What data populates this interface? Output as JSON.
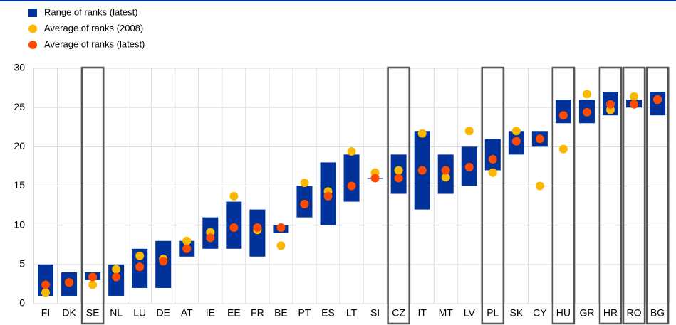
{
  "chart_data": {
    "type": "range-dot",
    "categories": [
      "FI",
      "DK",
      "SE",
      "NL",
      "LU",
      "DE",
      "AT",
      "IE",
      "EE",
      "FR",
      "BE",
      "PT",
      "ES",
      "LT",
      "SI",
      "CZ",
      "IT",
      "MT",
      "LV",
      "PL",
      "SK",
      "CY",
      "HU",
      "GR",
      "HR",
      "RO",
      "BG"
    ],
    "highlighted": [
      false,
      false,
      true,
      false,
      false,
      false,
      false,
      false,
      false,
      false,
      false,
      false,
      false,
      false,
      false,
      true,
      false,
      false,
      false,
      true,
      false,
      false,
      true,
      false,
      true,
      true,
      true
    ],
    "series": [
      {
        "name": "Range of ranks (latest)",
        "color": "#003299",
        "values": [
          [
            1,
            5
          ],
          [
            1,
            4
          ],
          [
            3,
            4
          ],
          [
            1,
            5
          ],
          [
            2,
            7
          ],
          [
            2,
            8
          ],
          [
            6,
            8
          ],
          [
            7,
            11
          ],
          [
            7,
            13
          ],
          [
            6,
            12
          ],
          [
            9,
            10
          ],
          [
            11,
            15
          ],
          [
            10,
            18
          ],
          [
            13,
            19
          ],
          [
            16,
            16
          ],
          [
            14,
            19
          ],
          [
            12,
            22
          ],
          [
            14,
            19
          ],
          [
            15,
            20
          ],
          [
            17,
            21
          ],
          [
            19,
            22
          ],
          [
            20,
            22
          ],
          [
            23,
            26
          ],
          [
            23,
            26
          ],
          [
            24,
            27
          ],
          [
            25,
            26
          ],
          [
            24,
            27
          ]
        ]
      },
      {
        "name": "Average of ranks (2008)",
        "color": "#fbb800",
        "values": [
          1.4,
          2.7,
          2.4,
          4.4,
          6.1,
          5.7,
          8.0,
          9.1,
          13.7,
          9.4,
          7.4,
          15.4,
          14.3,
          19.4,
          16.7,
          17.0,
          21.7,
          16.1,
          22.0,
          16.7,
          22.0,
          15.0,
          19.7,
          26.7,
          24.7,
          26.4,
          26.0
        ]
      },
      {
        "name": "Average of ranks (latest)",
        "color": "#ff4b00",
        "values": [
          2.4,
          2.7,
          3.4,
          3.4,
          4.7,
          5.4,
          7.0,
          8.4,
          9.7,
          9.7,
          9.7,
          12.7,
          13.7,
          15.0,
          16.0,
          16.0,
          17.0,
          17.0,
          17.4,
          18.4,
          20.7,
          21.0,
          24.0,
          24.4,
          25.4,
          25.4,
          26.0
        ]
      }
    ],
    "ylim": [
      0,
      30
    ],
    "yticks": [
      0,
      5,
      10,
      15,
      20,
      25,
      30
    ],
    "grid": true
  }
}
